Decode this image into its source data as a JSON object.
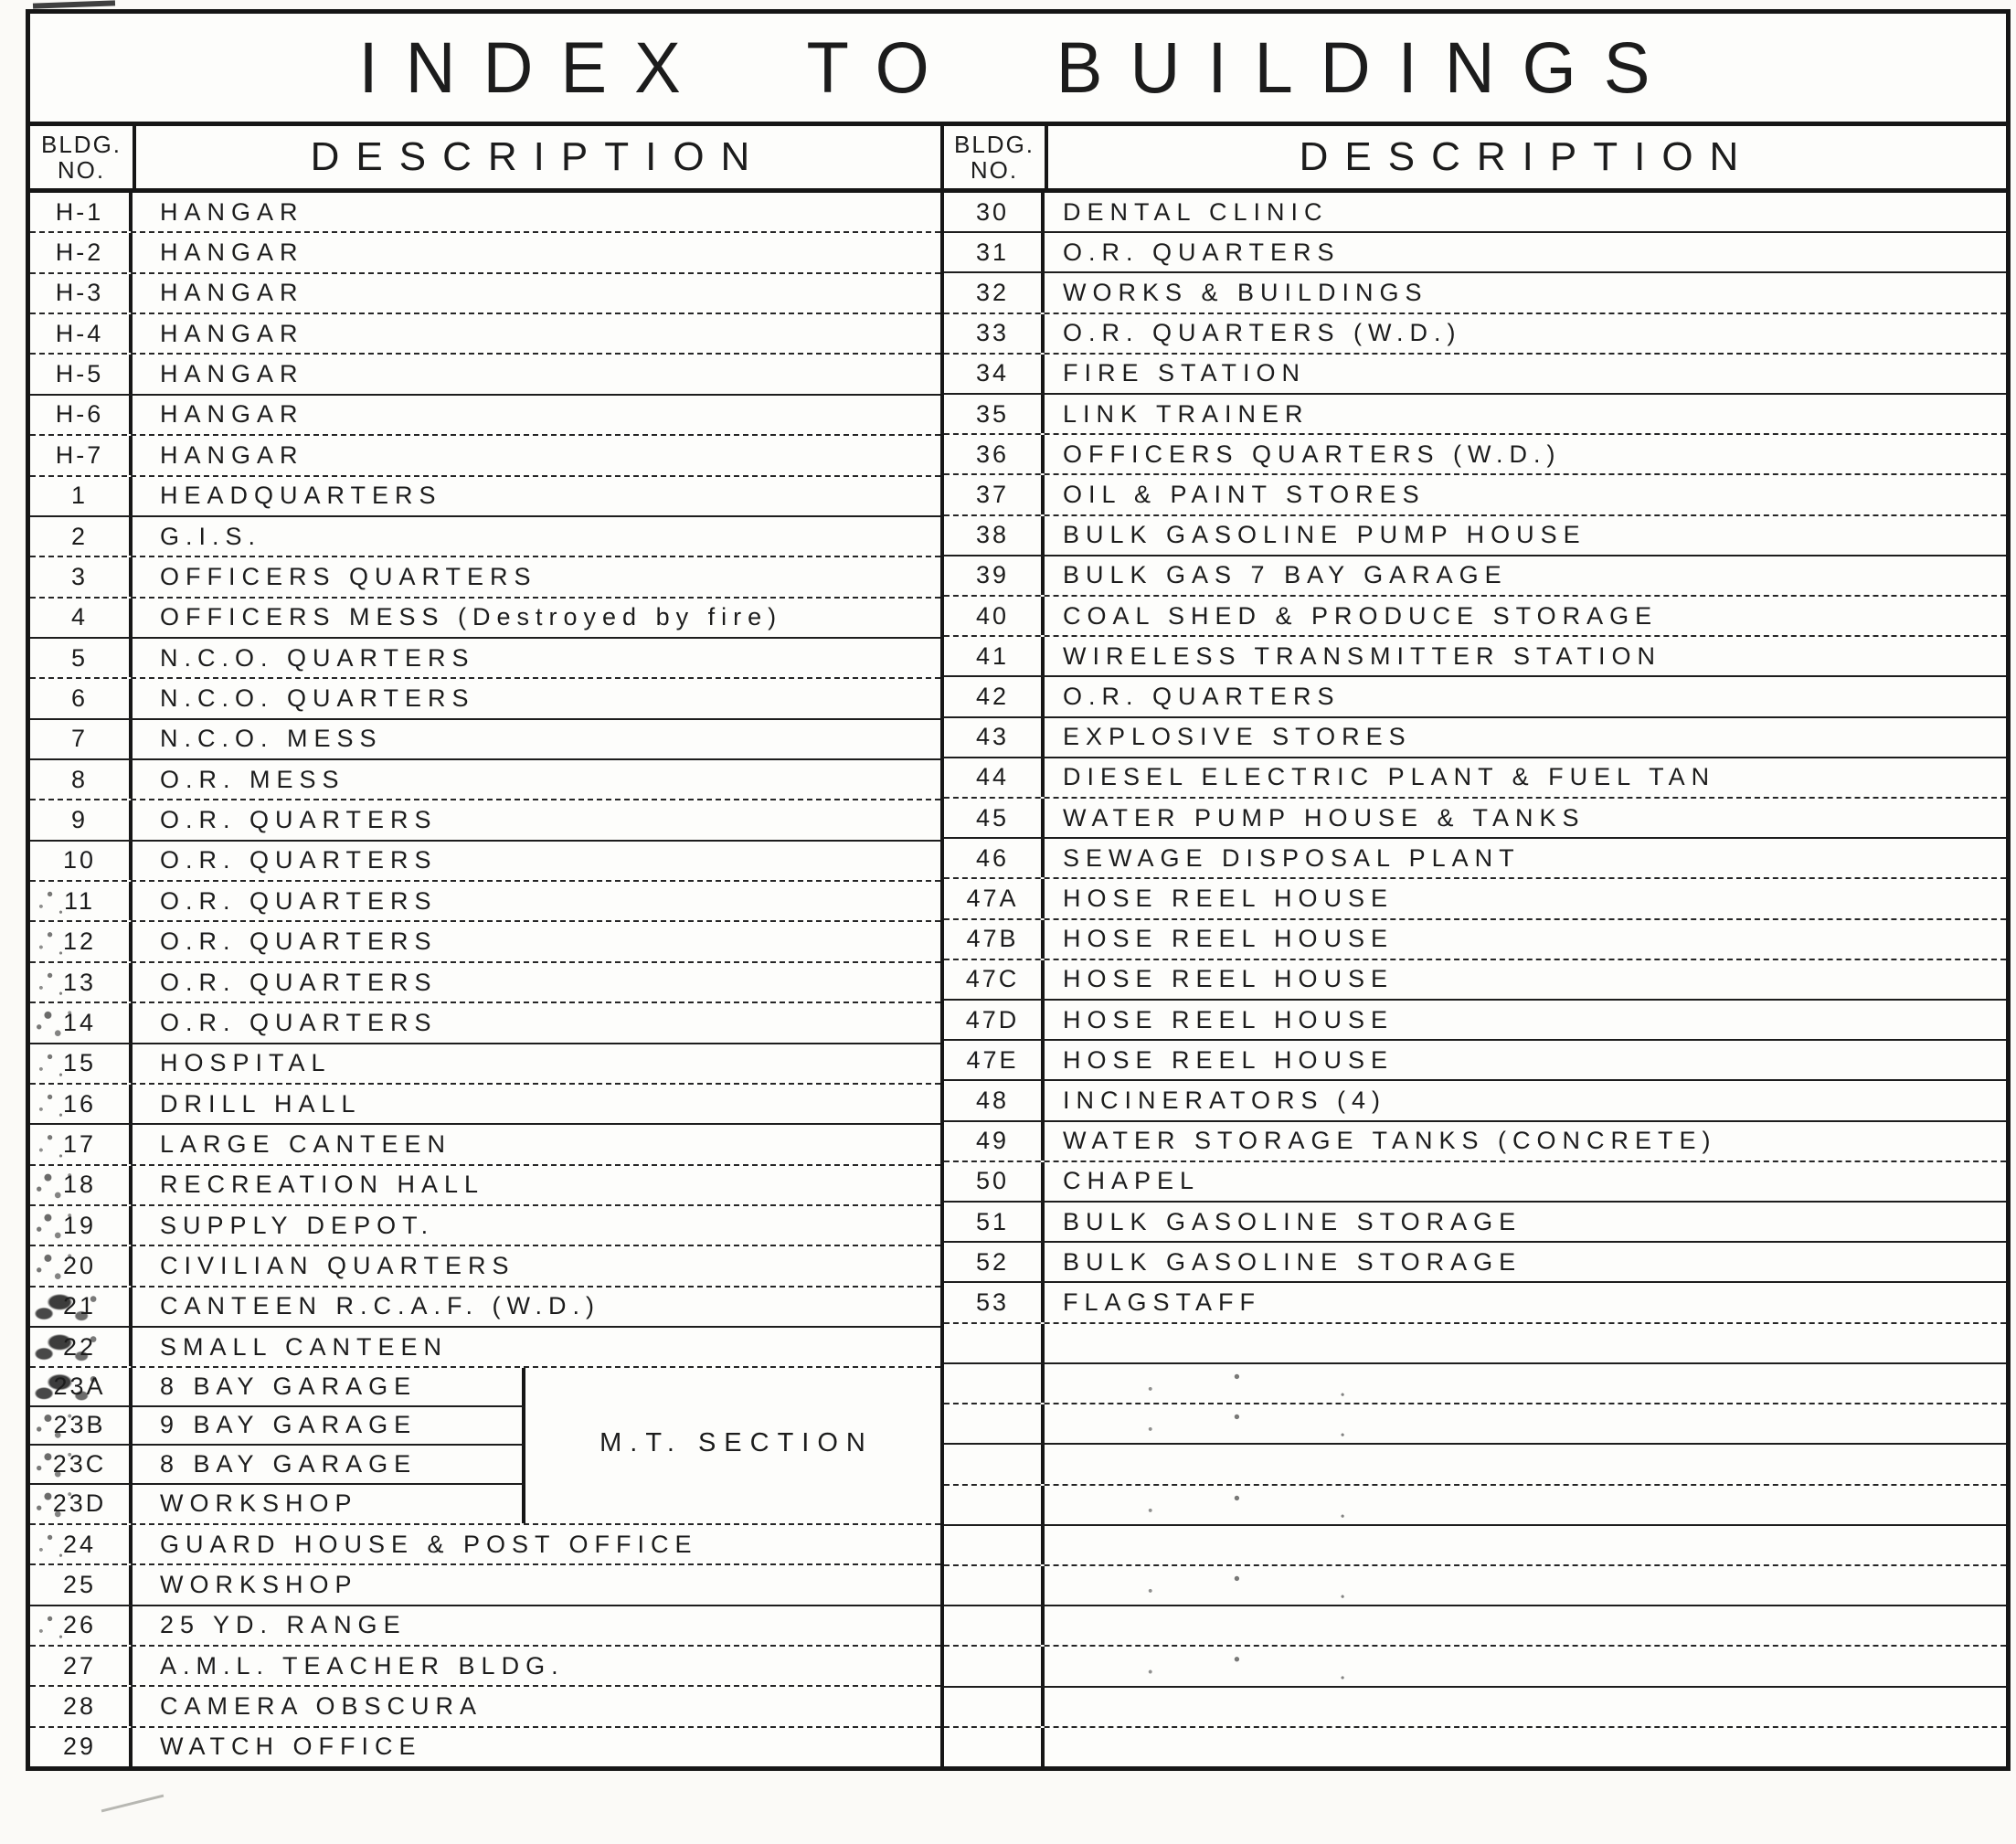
{
  "title": "INDEX TO BUILDINGS",
  "header": {
    "no_line1": "BLDG.",
    "no_line2": "NO.",
    "desc": "DESCRIPTION"
  },
  "mt_section_label": "M.T. SECTION",
  "left_rows": [
    {
      "no": "H-1",
      "desc": "HANGAR"
    },
    {
      "no": "H-2",
      "desc": "HANGAR"
    },
    {
      "no": "H-3",
      "desc": "HANGAR"
    },
    {
      "no": "H-4",
      "desc": "HANGAR"
    },
    {
      "no": "H-5",
      "desc": "HANGAR"
    },
    {
      "no": "H-6",
      "desc": "HANGAR"
    },
    {
      "no": "H-7",
      "desc": "HANGAR"
    },
    {
      "no": "1",
      "desc": "HEADQUARTERS"
    },
    {
      "no": "2",
      "desc": "G.I.S."
    },
    {
      "no": "3",
      "desc": "OFFICERS QUARTERS"
    },
    {
      "no": "4",
      "desc": "OFFICERS MESS (Destroyed by fire)"
    },
    {
      "no": "5",
      "desc": "N.C.O. QUARTERS"
    },
    {
      "no": "6",
      "desc": "N.C.O. QUARTERS"
    },
    {
      "no": "7",
      "desc": "N.C.O. MESS"
    },
    {
      "no": "8",
      "desc": "O.R. MESS"
    },
    {
      "no": "9",
      "desc": "O.R. QUARTERS"
    },
    {
      "no": "10",
      "desc": "O.R. QUARTERS"
    },
    {
      "no": "11",
      "desc": "O.R. QUARTERS"
    },
    {
      "no": "12",
      "desc": "O.R. QUARTERS"
    },
    {
      "no": "13",
      "desc": "O.R. QUARTERS"
    },
    {
      "no": "14",
      "desc": "O.R. QUARTERS"
    },
    {
      "no": "15",
      "desc": "HOSPITAL"
    },
    {
      "no": "16",
      "desc": "DRILL HALL"
    },
    {
      "no": "17",
      "desc": "LARGE CANTEEN"
    },
    {
      "no": "18",
      "desc": "RECREATION HALL"
    },
    {
      "no": "19",
      "desc": "SUPPLY DEPOT."
    },
    {
      "no": "20",
      "desc": "CIVILIAN QUARTERS"
    },
    {
      "no": "21",
      "desc": "CANTEEN R.C.A.F. (W.D.)"
    },
    {
      "no": "22",
      "desc": "SMALL CANTEEN"
    },
    {
      "no": "23A",
      "desc": "8 BAY GARAGE"
    },
    {
      "no": "23B",
      "desc": "9 BAY GARAGE"
    },
    {
      "no": "23C",
      "desc": "8 BAY GARAGE"
    },
    {
      "no": "23D",
      "desc": "WORKSHOP"
    },
    {
      "no": "24",
      "desc": "GUARD HOUSE & POST OFFICE"
    },
    {
      "no": "25",
      "desc": "WORKSHOP"
    },
    {
      "no": "26",
      "desc": "25 YD. RANGE"
    },
    {
      "no": "27",
      "desc": "A.M.L. TEACHER BLDG."
    },
    {
      "no": "28",
      "desc": "CAMERA OBSCURA"
    },
    {
      "no": "29",
      "desc": "WATCH OFFICE"
    }
  ],
  "right_rows": [
    {
      "no": "30",
      "desc": "DENTAL CLINIC"
    },
    {
      "no": "31",
      "desc": "O.R. QUARTERS"
    },
    {
      "no": "32",
      "desc": "WORKS & BUILDINGS"
    },
    {
      "no": "33",
      "desc": "O.R. QUARTERS (W.D.)"
    },
    {
      "no": "34",
      "desc": "FIRE STATION"
    },
    {
      "no": "35",
      "desc": "LINK TRAINER"
    },
    {
      "no": "36",
      "desc": "OFFICERS QUARTERS (W.D.)"
    },
    {
      "no": "37",
      "desc": "OIL & PAINT STORES"
    },
    {
      "no": "38",
      "desc": "BULK GASOLINE PUMP HOUSE"
    },
    {
      "no": "39",
      "desc": "BULK GAS 7 BAY GARAGE"
    },
    {
      "no": "40",
      "desc": "COAL SHED & PRODUCE STORAGE"
    },
    {
      "no": "41",
      "desc": "WIRELESS TRANSMITTER STATION"
    },
    {
      "no": "42",
      "desc": "O.R. QUARTERS"
    },
    {
      "no": "43",
      "desc": "EXPLOSIVE STORES"
    },
    {
      "no": "44",
      "desc": "DIESEL ELECTRIC PLANT & FUEL TAN"
    },
    {
      "no": "45",
      "desc": "WATER PUMP HOUSE & TANKS"
    },
    {
      "no": "46",
      "desc": "SEWAGE DISPOSAL PLANT"
    },
    {
      "no": "47A",
      "desc": "HOSE REEL HOUSE"
    },
    {
      "no": "47B",
      "desc": "HOSE REEL HOUSE"
    },
    {
      "no": "47C",
      "desc": "HOSE REEL HOUSE"
    },
    {
      "no": "47D",
      "desc": "HOSE REEL HOUSE"
    },
    {
      "no": "47E",
      "desc": "HOSE REEL HOUSE"
    },
    {
      "no": "48",
      "desc": "INCINERATORS (4)"
    },
    {
      "no": "49",
      "desc": "WATER STORAGE TANKS (CONCRETE)"
    },
    {
      "no": "50",
      "desc": "CHAPEL"
    },
    {
      "no": "51",
      "desc": "BULK GASOLINE STORAGE"
    },
    {
      "no": "52",
      "desc": "BULK GASOLINE STORAGE"
    },
    {
      "no": "53",
      "desc": "FLAGSTAFF"
    },
    {
      "no": "",
      "desc": ""
    },
    {
      "no": "",
      "desc": ""
    },
    {
      "no": "",
      "desc": ""
    },
    {
      "no": "",
      "desc": ""
    },
    {
      "no": "",
      "desc": ""
    },
    {
      "no": "",
      "desc": ""
    },
    {
      "no": "",
      "desc": ""
    },
    {
      "no": "",
      "desc": ""
    },
    {
      "no": "",
      "desc": ""
    },
    {
      "no": "",
      "desc": ""
    },
    {
      "no": "",
      "desc": ""
    }
  ]
}
